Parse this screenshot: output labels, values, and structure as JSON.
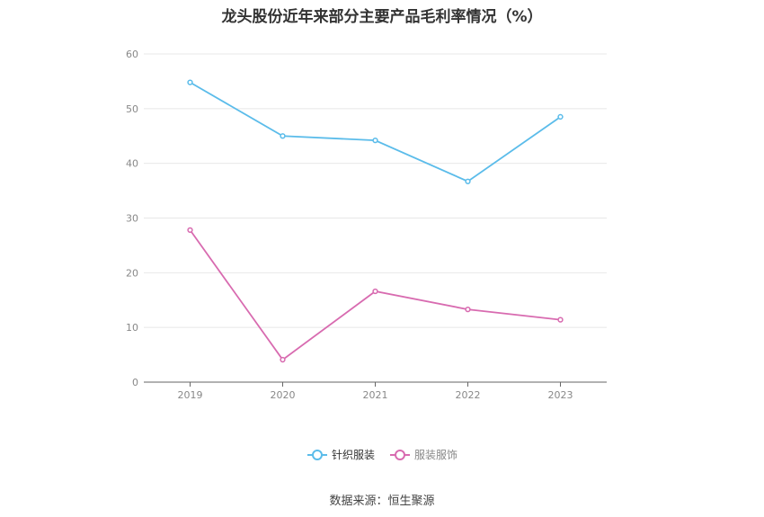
{
  "title": "龙头股份近年来部分主要产品毛利率情况（%）",
  "source_text": "数据来源：恒生聚源",
  "chart_data": {
    "type": "line",
    "categories": [
      "2019",
      "2020",
      "2021",
      "2022",
      "2023"
    ],
    "series": [
      {
        "name": "针织服装",
        "values": [
          54.8,
          45.0,
          44.2,
          36.7,
          48.5
        ],
        "color": "#5bbcea"
      },
      {
        "name": "服装服饰",
        "values": [
          27.8,
          4.1,
          16.6,
          13.3,
          11.4
        ],
        "color": "#d86bb0"
      }
    ],
    "ylim": [
      0,
      60
    ],
    "yticks": [
      0,
      10,
      20,
      30,
      40,
      50,
      60
    ],
    "grid": true,
    "legend_position": "bottom"
  }
}
